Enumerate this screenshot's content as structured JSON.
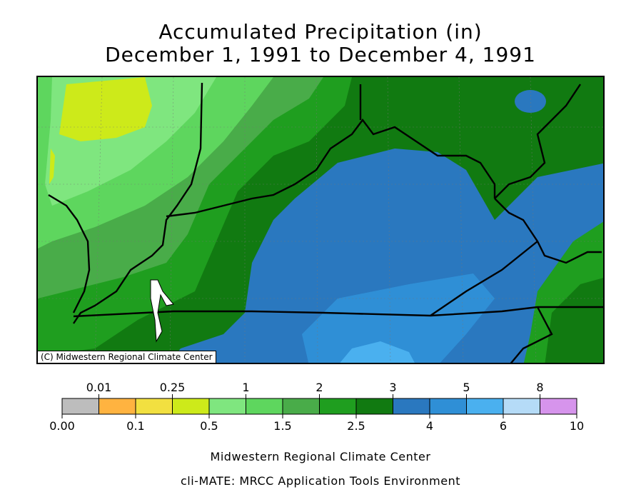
{
  "title": {
    "line1": "Accumulated Precipitation (in)",
    "line2": "December 1, 1991 to December 4, 1991"
  },
  "map": {
    "credit": "(C) Midwestern Regional Climate Center"
  },
  "legend": {
    "bins": [
      {
        "color": "#bdbdbd"
      },
      {
        "color": "#ffb340"
      },
      {
        "color": "#f2e040"
      },
      {
        "color": "#cdea1a"
      },
      {
        "color": "#7fe67f"
      },
      {
        "color": "#5ed65e"
      },
      {
        "color": "#49ac49"
      },
      {
        "color": "#1f9e1f"
      },
      {
        "color": "#117a11"
      },
      {
        "color": "#2a78bf"
      },
      {
        "color": "#2f8fd6"
      },
      {
        "color": "#4ab0ef"
      },
      {
        "color": "#b5dbf7"
      },
      {
        "color": "#d694ec"
      }
    ],
    "top_labels": [
      "0.01",
      "0.25",
      "1",
      "2",
      "3",
      "5",
      "8"
    ],
    "bottom_labels": [
      "0.00",
      "0.1",
      "0.5",
      "1.5",
      "2.5",
      "4",
      "6",
      "10"
    ]
  },
  "footer": {
    "line1": "Midwestern Regional Climate Center",
    "line2": "cli-MATE: MRCC Application Tools Environment"
  }
}
